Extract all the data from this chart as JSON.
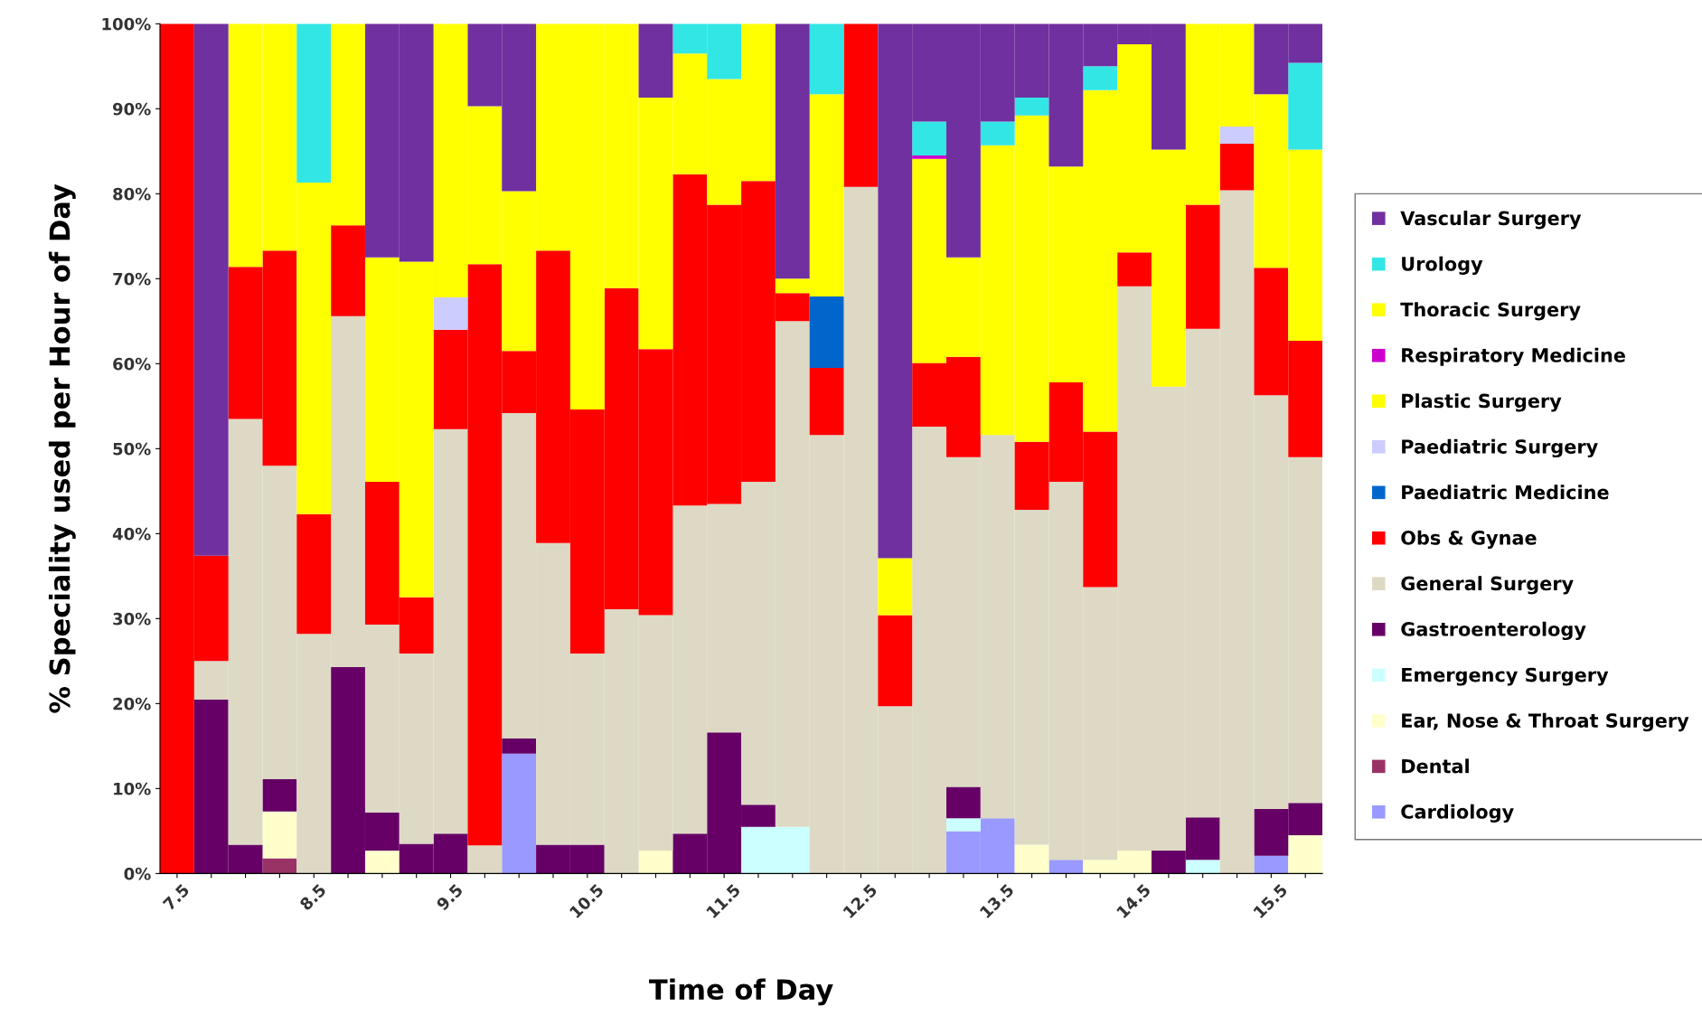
{
  "chart_data": {
    "type": "bar",
    "stacked": true,
    "xlabel": "Time of Day",
    "ylabel": "% Speciality used per Hour of Day",
    "categories": [
      "7.5",
      null,
      null,
      null,
      "8.5",
      null,
      null,
      null,
      "9.5",
      null,
      null,
      null,
      "10.5",
      null,
      null,
      null,
      "11.5",
      null,
      null,
      null,
      "12.5",
      null,
      null,
      null,
      "13.5",
      null,
      null,
      null,
      "14.5",
      null,
      null,
      null,
      "15.5",
      null
    ],
    "ylim": [
      0,
      100
    ],
    "yticks": [
      {
        "value": 0,
        "label": "0%"
      },
      {
        "value": 10,
        "label": "10%"
      },
      {
        "value": 20,
        "label": "20%"
      },
      {
        "value": 30,
        "label": "30%"
      },
      {
        "value": 40,
        "label": "40%"
      },
      {
        "value": 50,
        "label": "50%"
      },
      {
        "value": 60,
        "label": "60%"
      },
      {
        "value": 70,
        "label": "70%"
      },
      {
        "value": 80,
        "label": "80%"
      },
      {
        "value": 90,
        "label": "90%"
      },
      {
        "value": 100,
        "label": "100%"
      }
    ],
    "grid": false,
    "legend": "right",
    "series": [
      {
        "name": "Cardiology",
        "color": "#9999ff",
        "values": [
          0,
          0,
          0,
          0,
          0,
          0,
          0,
          0,
          0,
          0,
          14.1,
          0,
          0,
          0,
          0,
          0,
          0,
          0,
          0,
          0,
          0,
          0,
          0,
          5.0,
          6.5,
          0,
          1.6,
          0,
          0,
          0,
          0,
          0,
          2.1,
          0
        ]
      },
      {
        "name": "Dental",
        "color": "#993366",
        "values": [
          0,
          0,
          0,
          1.8,
          0,
          0,
          0,
          0,
          0,
          0,
          0,
          0,
          0,
          0,
          0,
          0,
          0,
          0,
          0,
          0,
          0,
          0,
          0,
          0,
          0,
          0,
          0,
          0,
          0,
          0,
          0,
          0,
          0,
          0
        ]
      },
      {
        "name": "Ear, Nose & Throat Surgery",
        "color": "#ffffcc",
        "values": [
          0,
          0,
          0,
          5.5,
          0,
          0,
          2.7,
          0,
          0,
          0,
          0,
          0,
          0,
          0,
          2.7,
          0,
          0,
          0,
          0,
          0,
          0,
          0,
          0,
          0,
          0,
          3.4,
          0,
          1.6,
          2.7,
          0,
          0,
          0,
          0,
          4.5
        ]
      },
      {
        "name": "Emergency Surgery",
        "color": "#ccffff",
        "values": [
          0,
          0,
          0,
          0,
          0,
          0,
          0,
          0,
          0,
          0,
          0,
          0,
          0,
          0,
          0,
          0,
          0,
          5.5,
          5.5,
          0,
          0,
          0,
          0,
          1.5,
          0,
          0,
          0,
          0,
          0,
          0,
          1.6,
          0,
          0,
          0
        ]
      },
      {
        "name": "Gastroenterology",
        "color": "#660066",
        "values": [
          0,
          20.5,
          3.4,
          3.8,
          0,
          24.3,
          4.5,
          3.5,
          4.7,
          0,
          1.8,
          3.4,
          3.4,
          0,
          0,
          4.7,
          16.6,
          2.6,
          0,
          0,
          0,
          0,
          0,
          3.7,
          0,
          0,
          0,
          0,
          0,
          2.7,
          5.0,
          0,
          5.5,
          3.8
        ]
      },
      {
        "name": "General Surgery",
        "color": "#ddd9c4",
        "values": [
          0,
          4.5,
          50.1,
          36.9,
          28.2,
          41.3,
          22.1,
          22.4,
          47.6,
          3.3,
          38.3,
          35.5,
          22.5,
          31.1,
          27.7,
          38.6,
          26.9,
          38.0,
          59.5,
          51.6,
          80.8,
          19.7,
          52.6,
          38.8,
          45.1,
          39.4,
          44.5,
          32.1,
          66.4,
          54.6,
          57.5,
          80.4,
          48.7,
          40.7
        ]
      },
      {
        "name": "Obs & Gynae",
        "color": "#ff0000",
        "values": [
          100,
          12.4,
          17.9,
          25.3,
          14.1,
          10.7,
          16.8,
          6.6,
          11.7,
          68.4,
          7.3,
          34.4,
          28.7,
          37.8,
          31.3,
          39.0,
          35.2,
          35.4,
          3.3,
          7.9,
          19.2,
          10.7,
          7.5,
          11.8,
          0,
          8.0,
          11.7,
          18.3,
          4.0,
          0,
          14.6,
          5.5,
          15.0,
          13.7
        ]
      },
      {
        "name": "Paediatric Medicine",
        "color": "#0066cc",
        "values": [
          0,
          0,
          0,
          0,
          0,
          0,
          0,
          0,
          0,
          0,
          0,
          0,
          0,
          0,
          0,
          0,
          0,
          0,
          0,
          8.4,
          0,
          0,
          0,
          0,
          0,
          0,
          0,
          0,
          0,
          0,
          0,
          0,
          0,
          0
        ]
      },
      {
        "name": "Paediatric Surgery",
        "color": "#ccccff",
        "values": [
          0,
          0,
          0,
          0,
          0,
          0,
          0,
          0,
          3.8,
          0,
          0,
          0,
          0,
          0,
          0,
          0,
          0,
          0,
          0,
          0,
          0,
          0,
          0,
          0,
          0,
          0,
          0,
          0,
          0,
          0,
          0,
          2.0,
          0,
          0
        ]
      },
      {
        "name": "Plastic Surgery",
        "color": "#ffff00",
        "values": [
          0,
          0,
          0,
          0,
          0,
          0,
          0,
          0,
          0,
          0,
          0,
          0,
          0,
          0,
          0,
          0,
          0,
          0,
          0,
          0,
          0,
          0,
          24.0,
          0,
          0,
          0,
          0,
          0,
          0,
          0,
          0,
          0,
          0,
          0
        ]
      },
      {
        "name": "Respiratory Medicine",
        "color": "#cc00cc",
        "values": [
          0,
          0,
          0,
          0,
          0,
          0,
          0,
          0,
          0,
          0,
          0,
          0,
          0,
          0,
          0,
          0,
          0,
          0,
          0,
          0,
          0,
          0,
          0.4,
          0,
          0,
          0,
          0,
          0,
          0,
          0,
          0,
          0,
          0,
          0
        ]
      },
      {
        "name": "Thoracic Surgery",
        "color": "#ffff00",
        "values": [
          0,
          0,
          28.6,
          26.7,
          39.0,
          23.7,
          26.4,
          39.5,
          32.2,
          18.6,
          18.8,
          26.7,
          45.4,
          31.1,
          29.6,
          14.2,
          14.8,
          18.5,
          1.7,
          23.8,
          0,
          6.7,
          0,
          11.7,
          34.1,
          38.4,
          25.4,
          40.2,
          24.5,
          27.9,
          21.3,
          12.1,
          20.4,
          22.5
        ]
      },
      {
        "name": "Urology",
        "color": "#33e6e6",
        "values": [
          0,
          0,
          0,
          0,
          18.7,
          0,
          0,
          0,
          0,
          0,
          0,
          0,
          0,
          0,
          0,
          3.5,
          6.5,
          0,
          0,
          8.3,
          0,
          0,
          4.0,
          0,
          2.8,
          2.1,
          0,
          2.8,
          0,
          0,
          0,
          0,
          0,
          10.2
        ]
      },
      {
        "name": "Vascular Surgery",
        "color": "#7030a0",
        "values": [
          0,
          62.6,
          0,
          0,
          0,
          0,
          27.5,
          28.0,
          0,
          9.7,
          19.7,
          0,
          0,
          0,
          8.7,
          0,
          0,
          0,
          30.0,
          0,
          0,
          62.9,
          11.5,
          27.5,
          11.5,
          8.7,
          16.8,
          5.0,
          2.4,
          14.8,
          0,
          0,
          8.3,
          4.6
        ]
      }
    ]
  }
}
